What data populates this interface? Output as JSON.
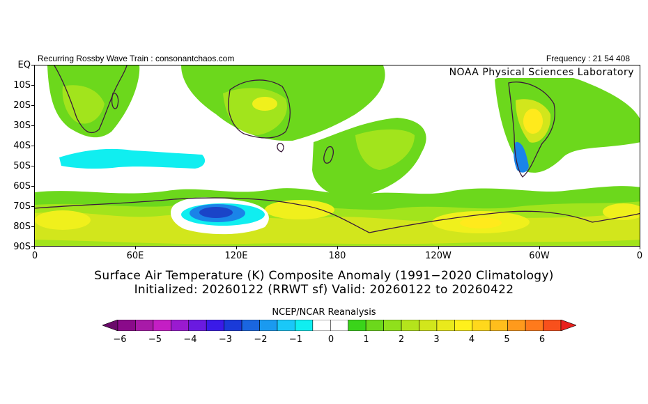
{
  "header": {
    "left_text": "Recurring Rossby Wave Train : consonantchaos.com",
    "right_text": "Frequency : 21 54 408"
  },
  "map": {
    "credit": "NOAA Physical Sciences Laboratory",
    "lat_labels": [
      "EQ",
      "10S",
      "20S",
      "30S",
      "40S",
      "50S",
      "60S",
      "70S",
      "80S",
      "90S"
    ],
    "lon_labels": [
      "0",
      "60E",
      "120E",
      "180",
      "120W",
      "60W",
      "0"
    ],
    "anomaly_colors": {
      "plus_1": "#6cd81c",
      "plus_1_5": "#a2e41c",
      "plus_2": "#d2e61c",
      "plus_2_5": "#f0f01c",
      "plus_3": "#ffea1c",
      "plus_3_5": "#fcd21c",
      "minus_1": "#17e6f4",
      "minus_2": "#1a84e8",
      "minus_3": "#1a44c8"
    }
  },
  "captions": {
    "line1": "Surface Air Temperature (K) Composite Anomaly (1991−2020 Climatology)",
    "line2": "Initialized: 20260122 (RRWT sf) Valid: 20260122 to 20260422"
  },
  "colorbar": {
    "source": "NCEP/NCAR Reanalysis",
    "tick_labels": [
      "−6",
      "−5",
      "−4",
      "−3",
      "−2",
      "−1",
      "0",
      "1",
      "2",
      "3",
      "4",
      "5",
      "6"
    ],
    "colors": [
      "#6a0a6a",
      "#8a0a8a",
      "#a81aa8",
      "#c41ec4",
      "#9a1ad0",
      "#6a1ae0",
      "#3a1ae8",
      "#1a3ad8",
      "#1a66e0",
      "#1a9af0",
      "#1ac8f8",
      "#10eef0",
      "#ffffff",
      "#ffffff",
      "#3ad41a",
      "#6cd81c",
      "#90e01c",
      "#b4e41c",
      "#d2e61c",
      "#eaea1c",
      "#fff01c",
      "#ffd81c",
      "#ffbe1c",
      "#ff9a1c",
      "#ff7a1c",
      "#f8501c",
      "#e8201c"
    ]
  }
}
